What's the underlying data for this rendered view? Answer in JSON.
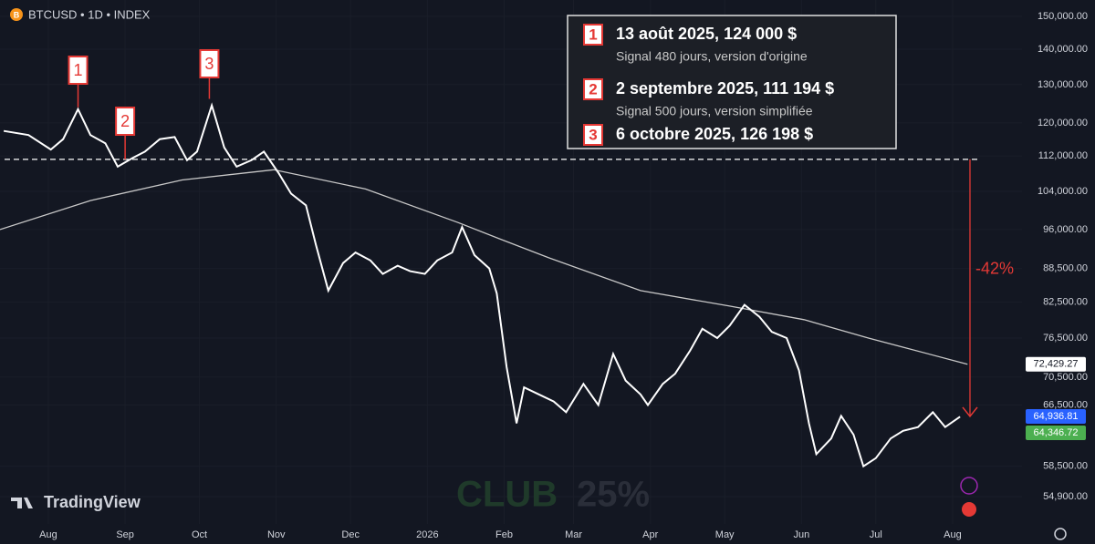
{
  "chart_data": {
    "type": "line",
    "header": {
      "symbol": "BTCUSD • 1D • INDEX",
      "icon": "B"
    },
    "log_scale": true,
    "xlim": [
      -19.5,
      393
    ],
    "xticks": [
      {
        "value": 0,
        "label": "Aug"
      },
      {
        "value": 31,
        "label": "Sep"
      },
      {
        "value": 61,
        "label": "Oct"
      },
      {
        "value": 92,
        "label": "Nov"
      },
      {
        "value": 122,
        "label": "Dec"
      },
      {
        "value": 153,
        "label": "2026"
      },
      {
        "value": 184,
        "label": "Feb"
      },
      {
        "value": 212,
        "label": "Mar"
      },
      {
        "value": 243,
        "label": "Apr"
      },
      {
        "value": 273,
        "label": "May"
      },
      {
        "value": 304,
        "label": "Jun"
      },
      {
        "value": 334,
        "label": "Jul"
      },
      {
        "value": 365,
        "label": "Aug"
      }
    ],
    "ylim": [
      51850,
      155200
    ],
    "yticks": [
      {
        "value": 150000,
        "label": "150,000.00"
      },
      {
        "value": 140000,
        "label": "140,000.00"
      },
      {
        "value": 130000,
        "label": "130,000.00"
      },
      {
        "value": 120000,
        "label": "120,000.00"
      },
      {
        "value": 112000,
        "label": "112,000.00"
      },
      {
        "value": 104000,
        "label": "104,000.00"
      },
      {
        "value": 96000,
        "label": "96,000.00"
      },
      {
        "value": 88500,
        "label": "88,500.00"
      },
      {
        "value": 82500,
        "label": "82,500.00"
      },
      {
        "value": 76500,
        "label": "76,500.00"
      },
      {
        "value": 70500,
        "label": "70,500.00"
      },
      {
        "value": 66500,
        "label": "66,500.00"
      },
      {
        "value": 58500,
        "label": "58,500.00"
      },
      {
        "value": 54900,
        "label": "54,900.00"
      }
    ],
    "series": [
      {
        "name": "BTCUSD",
        "color": "#ffffff",
        "x": [
          -18,
          -8,
          1,
          6,
          12,
          17,
          23,
          28,
          34,
          39,
          45,
          51,
          56,
          60,
          66,
          71,
          76,
          82,
          87,
          93,
          98,
          104,
          108,
          113,
          119,
          124,
          130,
          135,
          141,
          146,
          152,
          157,
          163,
          167,
          172,
          178,
          181,
          185,
          189,
          192,
          198,
          204,
          209,
          216,
          222,
          228,
          233,
          239,
          242,
          248,
          253,
          259,
          264,
          270,
          275,
          281,
          287,
          292,
          298,
          303,
          307,
          310,
          316,
          320,
          325,
          329,
          334,
          340,
          345,
          351,
          357,
          362,
          368
        ],
        "values": [
          118000,
          117000,
          113500,
          116000,
          123500,
          117000,
          115000,
          109500,
          111500,
          113000,
          116000,
          116500,
          111000,
          113000,
          124500,
          114000,
          109500,
          111000,
          113000,
          108000,
          103500,
          101000,
          93000,
          84500,
          89500,
          91500,
          90000,
          87500,
          89000,
          88000,
          87500,
          90000,
          91500,
          96500,
          91000,
          88500,
          84000,
          72000,
          64000,
          69000,
          68000,
          67000,
          65500,
          69500,
          66500,
          74000,
          70000,
          68000,
          66500,
          69500,
          71000,
          74500,
          78000,
          76500,
          78500,
          82000,
          80000,
          77500,
          76500,
          71500,
          64000,
          60000,
          62000,
          65000,
          62500,
          58500,
          59500,
          62000,
          63000,
          63500,
          65500,
          63500,
          64900
        ]
      },
      {
        "name": "MA",
        "color": "#c8c8c8",
        "x": [
          -19.5,
          17,
          54,
          91,
          128,
          165,
          183,
          202,
          239,
          275,
          305,
          331,
          371
        ],
        "values": [
          96000,
          102000,
          106500,
          108800,
          104500,
          97500,
          94000,
          90500,
          84500,
          81800,
          79500,
          76500,
          72429
        ]
      }
    ],
    "price_labels": [
      {
        "value": 72429.27,
        "label": "72,429.27",
        "color": "#ffffff",
        "text_color": "#131722"
      },
      {
        "value": 64936.81,
        "label": "64,936.81",
        "color": "#2962ff",
        "text_color": "#ffffff"
      },
      {
        "value": 64346.72,
        "label": "64,346.72",
        "color": "#4caf50",
        "text_color": "#ffffff"
      }
    ],
    "markers": [
      {
        "label": "1",
        "x": 12,
        "value": 124000
      },
      {
        "label": "2",
        "x": 31,
        "value": 111194
      },
      {
        "label": "3",
        "x": 65,
        "value": 126198
      }
    ],
    "reference_line": {
      "value": 111194,
      "color": "#ffffff"
    },
    "arrow": {
      "x": 372,
      "from": 111194,
      "to": 64936.81,
      "label": "-42%",
      "color": "#e53935"
    },
    "annotations": [
      {
        "number": "1",
        "title": "13 août 2025, 124 000 $",
        "subtitle": "Signal 480 jours, version d'origine"
      },
      {
        "number": "2",
        "title": "2 septembre 2025, 111 194 $",
        "subtitle": "Signal 500 jours, version simplifiée"
      },
      {
        "number": "3",
        "title": "6 octobre 2025, 126 198 $"
      }
    ],
    "watermark": [
      "CLUB",
      "25%"
    ],
    "logo": "TradingView"
  }
}
